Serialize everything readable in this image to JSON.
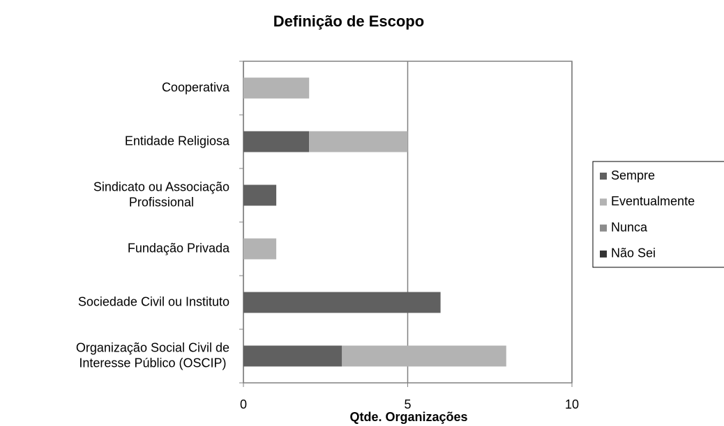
{
  "chart_data": {
    "type": "stacked-bar-horizontal",
    "title": "Definição de Escopo",
    "x_label": "Qtde. Organizações",
    "categories": [
      "Cooperativa",
      "Entidade Religiosa",
      "Sindicato ou Associação Profissional",
      "Fundação Privada",
      "Sociedade Civil ou Instituto",
      "Organização Social Civil de Interesse Público (OSCIP)"
    ],
    "series": [
      {
        "name": "Sempre",
        "color": "#606060",
        "values": [
          0,
          2,
          1,
          0,
          6,
          3
        ]
      },
      {
        "name": "Eventualmente",
        "color": "#b3b3b3",
        "values": [
          2,
          3,
          0,
          1,
          0,
          5
        ]
      },
      {
        "name": "Nunca",
        "color": "#8c8c8c",
        "values": [
          0,
          0,
          0,
          0,
          0,
          0
        ]
      },
      {
        "name": "Não Sei",
        "color": "#333333",
        "values": [
          0,
          0,
          0,
          0,
          0,
          0
        ]
      }
    ],
    "xlim": [
      0,
      10
    ],
    "xticks": [
      0,
      5,
      10
    ],
    "grid": true,
    "legend": "right"
  }
}
